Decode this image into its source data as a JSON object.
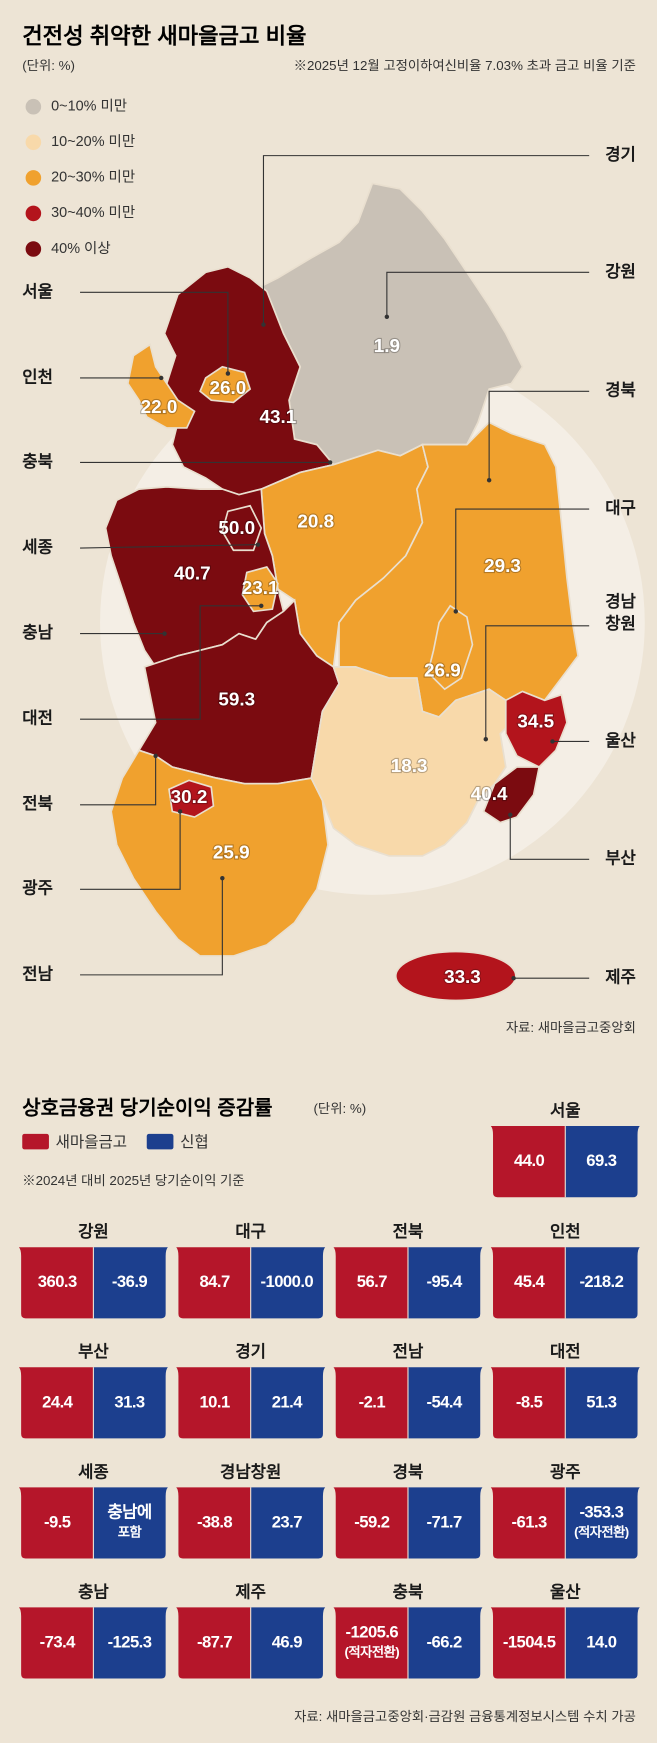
{
  "header": {
    "title": "건전성 취약한 새마을금고 비율",
    "unit": "(단위: %)",
    "note": "※2025년 12월 고정이하여신비율 7.03% 초과 금고 비율 기준"
  },
  "map": {
    "legend": [
      {
        "label": "0~10% 미만",
        "color": "#c9c1b6"
      },
      {
        "label": "10~20% 미만",
        "color": "#f8d9aa"
      },
      {
        "label": "20~30% 미만",
        "color": "#f0a12e"
      },
      {
        "label": "30~40% 미만",
        "color": "#b3141c"
      },
      {
        "label": "40% 이상",
        "color": "#7b0b10"
      }
    ],
    "regions": [
      {
        "label": [
          "서울"
        ],
        "value": "26.0",
        "color": "#f0a12e"
      },
      {
        "label": [
          "인천"
        ],
        "value": "22.0",
        "color": "#f0a12e"
      },
      {
        "label": [
          "충북"
        ],
        "value": "20.8",
        "color": "#f0a12e"
      },
      {
        "label": [
          "세종"
        ],
        "value": "50.0",
        "color": "#7b0b10"
      },
      {
        "label": [
          "충남"
        ],
        "value": "40.7",
        "color": "#7b0b10"
      },
      {
        "label": [
          "대전"
        ],
        "value": "23.1",
        "color": "#f0a12e"
      },
      {
        "label": [
          "전북"
        ],
        "value": "59.3",
        "color": "#7b0b10"
      },
      {
        "label": [
          "광주"
        ],
        "value": "30.2",
        "color": "#b3141c"
      },
      {
        "label": [
          "전남"
        ],
        "value": "25.9",
        "color": "#f0a12e"
      },
      {
        "label": [
          "경기"
        ],
        "value": "43.1",
        "color": "#7b0b10"
      },
      {
        "label": [
          "강원"
        ],
        "value": "1.9",
        "color": "#c9c1b6"
      },
      {
        "label": [
          "경북"
        ],
        "value": "29.3",
        "color": "#f0a12e"
      },
      {
        "label": [
          "대구"
        ],
        "value": "26.9",
        "color": "#f0a12e"
      },
      {
        "label": [
          "경남",
          "창원"
        ],
        "value": "18.3",
        "color": "#f8d9aa"
      },
      {
        "label": [
          "울산"
        ],
        "value": "34.5",
        "color": "#b3141c"
      },
      {
        "label": [
          "부산"
        ],
        "value": "40.4",
        "color": "#7b0b10"
      },
      {
        "label": [
          "제주"
        ],
        "value": "33.3",
        "color": "#b3141c"
      }
    ],
    "source": "자료: 새마을금고중앙회"
  },
  "profit": {
    "title": "상호금융권 당기순이익 증감률",
    "unit": "(단위: %)",
    "legend": [
      {
        "label": "새마을금고",
        "color": "#b5162a"
      },
      {
        "label": "신협",
        "color": "#1c3f8e"
      }
    ],
    "note": "※2024년 대비 2025년 당기순이익 기준",
    "cards": [
      {
        "region": "서울",
        "saemaul": [
          "44.0"
        ],
        "shinhyup": [
          "69.3"
        ]
      },
      {
        "region": "강원",
        "saemaul": [
          "360.3"
        ],
        "shinhyup": [
          "-36.9"
        ]
      },
      {
        "region": "대구",
        "saemaul": [
          "84.7"
        ],
        "shinhyup": [
          "-1000.0"
        ]
      },
      {
        "region": "전북",
        "saemaul": [
          "56.7"
        ],
        "shinhyup": [
          "-95.4"
        ]
      },
      {
        "region": "인천",
        "saemaul": [
          "45.4"
        ],
        "shinhyup": [
          "-218.2"
        ]
      },
      {
        "region": "부산",
        "saemaul": [
          "24.4"
        ],
        "shinhyup": [
          "31.3"
        ]
      },
      {
        "region": "경기",
        "saemaul": [
          "10.1"
        ],
        "shinhyup": [
          "21.4"
        ]
      },
      {
        "region": "전남",
        "saemaul": [
          "-2.1"
        ],
        "shinhyup": [
          "-54.4"
        ]
      },
      {
        "region": "대전",
        "saemaul": [
          "-8.5"
        ],
        "shinhyup": [
          "51.3"
        ]
      },
      {
        "region": "세종",
        "saemaul": [
          "-9.5"
        ],
        "shinhyup": [
          "충남에",
          "포함"
        ]
      },
      {
        "region": "경남창원",
        "saemaul": [
          "-38.8"
        ],
        "shinhyup": [
          "23.7"
        ]
      },
      {
        "region": "경북",
        "saemaul": [
          "-59.2"
        ],
        "shinhyup": [
          "-71.7"
        ]
      },
      {
        "region": "광주",
        "saemaul": [
          "-61.3"
        ],
        "shinhyup": [
          "-353.3",
          "(적자전환)"
        ]
      },
      {
        "region": "충남",
        "saemaul": [
          "-73.4"
        ],
        "shinhyup": [
          "-125.3"
        ]
      },
      {
        "region": "제주",
        "saemaul": [
          "-87.7"
        ],
        "shinhyup": [
          "46.9"
        ]
      },
      {
        "region": "충북",
        "saemaul": [
          "-1205.6",
          "(적자전환)"
        ],
        "shinhyup": [
          "-66.2"
        ]
      },
      {
        "region": "울산",
        "saemaul": [
          "-1504.5"
        ],
        "shinhyup": [
          "14.0"
        ]
      }
    ],
    "source": "자료: 새마을금고중앙회·금감원 금융통계정보시스템 수치 가공"
  }
}
